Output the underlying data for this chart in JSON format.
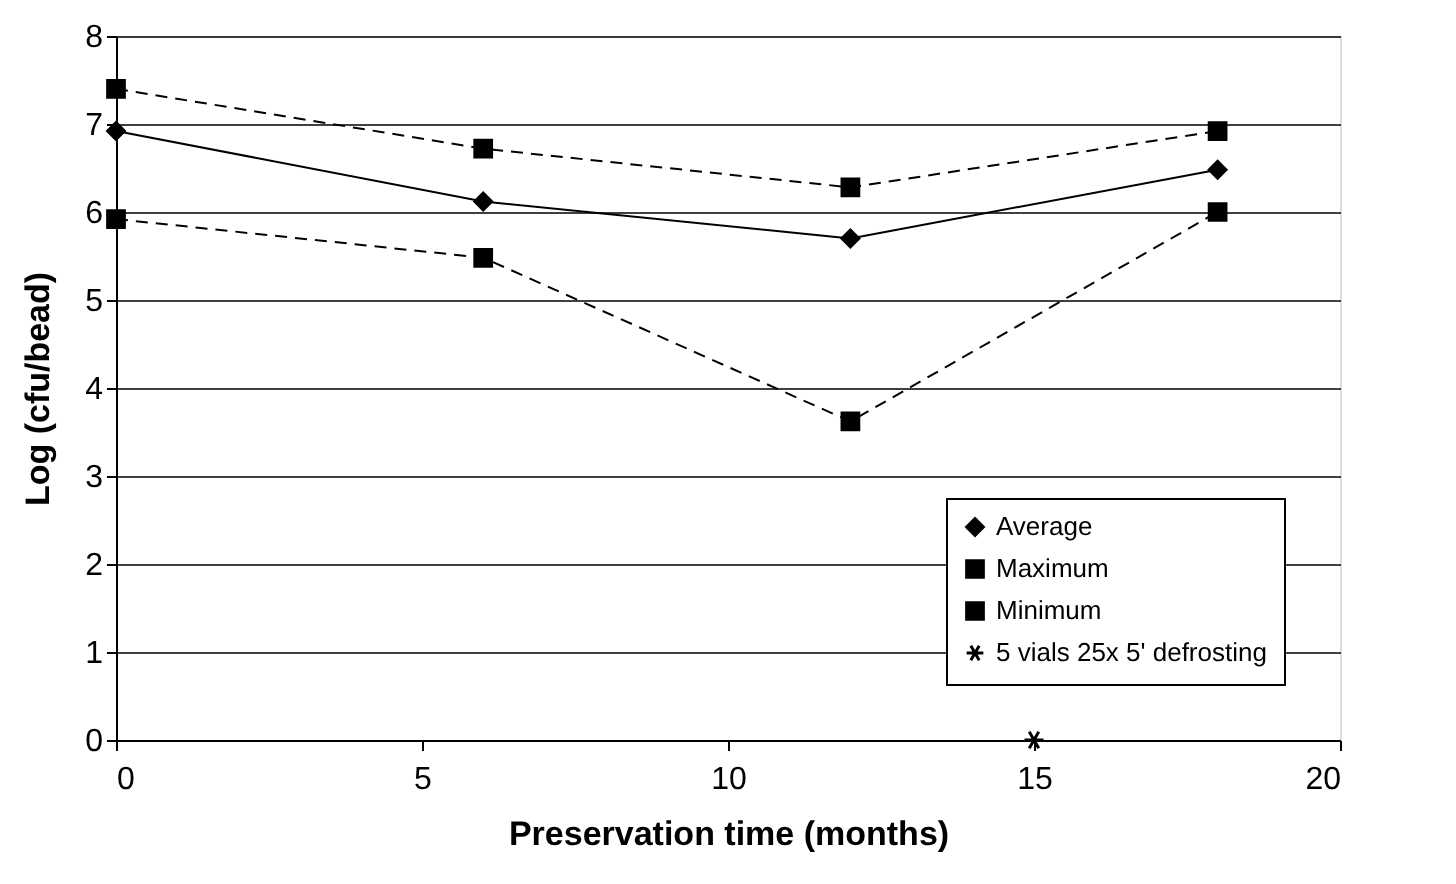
{
  "chart_data": {
    "type": "line",
    "xlabel": "Preservation time (months)",
    "ylabel": "Log (cfu/bead)",
    "x": [
      0,
      6,
      12,
      18
    ],
    "series": [
      {
        "name": "Average",
        "color": "#000000",
        "values": [
          6.92,
          6.12,
          5.7,
          6.48
        ],
        "marker": "diamond",
        "line_style": "solid"
      },
      {
        "name": "Maximum",
        "color": "#000000",
        "values": [
          7.4,
          6.72,
          6.28,
          6.92
        ],
        "marker": "square",
        "line_style": "dashed"
      },
      {
        "name": "Minimum",
        "color": "#000000",
        "values": [
          5.92,
          5.48,
          3.62,
          6.0
        ],
        "marker": "square",
        "line_style": "dashed"
      },
      {
        "name": "5 vials 25x 5' defrosting",
        "type": "scatter",
        "color": "#000000",
        "x": [
          15
        ],
        "values": [
          0
        ],
        "marker": "cross"
      }
    ],
    "xlim": [
      0,
      20
    ],
    "xticks": [
      0,
      5,
      10,
      15,
      20
    ],
    "ylim": [
      0,
      8
    ],
    "yticks": [
      0,
      1,
      2,
      3,
      4,
      5,
      6,
      7,
      8
    ],
    "grid": "y",
    "legend": "bottom right"
  }
}
